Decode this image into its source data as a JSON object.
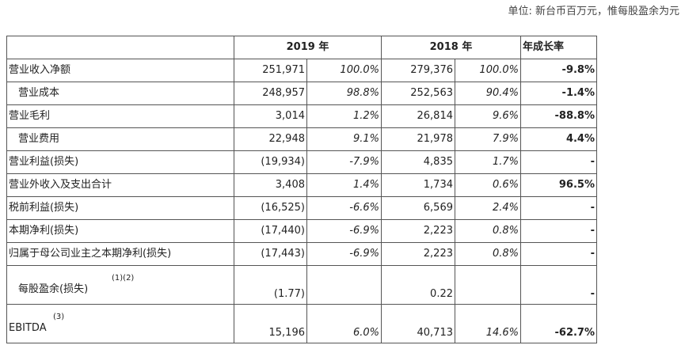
{
  "unit_note": "单位: 新台币百万元，惟每股盈余为元",
  "header": {
    "year_2019": "2019 年",
    "year_2018": "2018 年",
    "growth": "年成长率"
  },
  "rows": [
    {
      "label": "营业收入净额",
      "v2019": "251,971",
      "p2019": "100.0%",
      "v2018": "279,376",
      "p2018": "100.0%",
      "growth": "-9.8%"
    },
    {
      "label": "营业成本",
      "v2019": "248,957",
      "p2019": "98.8%",
      "v2018": "252,563",
      "p2018": "90.4%",
      "growth": "-1.4%"
    },
    {
      "label": "营业毛利",
      "v2019": "3,014",
      "p2019": "1.2%",
      "v2018": "26,814",
      "p2018": "9.6%",
      "growth": "-88.8%"
    },
    {
      "label": "营业费用",
      "v2019": "22,948",
      "p2019": "9.1%",
      "v2018": "21,978",
      "p2018": "7.9%",
      "growth": "4.4%"
    },
    {
      "label": "营业利益(损失)",
      "v2019": "(19,934)",
      "p2019": "-7.9%",
      "v2018": "4,835",
      "p2018": "1.7%",
      "growth": "-"
    },
    {
      "label": "营业外收入及支出合计",
      "v2019": "3,408",
      "p2019": "1.4%",
      "v2018": "1,734",
      "p2018": "0.6%",
      "growth": "96.5%"
    },
    {
      "label": "税前利益(损失)",
      "v2019": "(16,525)",
      "p2019": "-6.6%",
      "v2018": "6,569",
      "p2018": "2.4%",
      "growth": "-"
    },
    {
      "label": "本期净利(损失)",
      "v2019": "(17,440)",
      "p2019": "-6.9%",
      "v2018": "2,223",
      "p2018": "0.8%",
      "growth": "-"
    },
    {
      "label": "归属于母公司业主之本期净利(损失)",
      "v2019": "(17,443)",
      "p2019": "-6.9%",
      "v2018": "2,223",
      "p2018": "0.8%",
      "growth": "-"
    },
    {
      "label": "每股盈余(损失)",
      "note": "(1)(2)",
      "v2019": "(1.77)",
      "p2019": "",
      "v2018": "0.22",
      "p2018": "",
      "growth": "-"
    },
    {
      "label": "EBITDA",
      "note": "(3)",
      "v2019": "15,196",
      "p2019": "6.0%",
      "v2018": "40,713",
      "p2018": "14.6%",
      "growth": "-62.7%"
    }
  ]
}
